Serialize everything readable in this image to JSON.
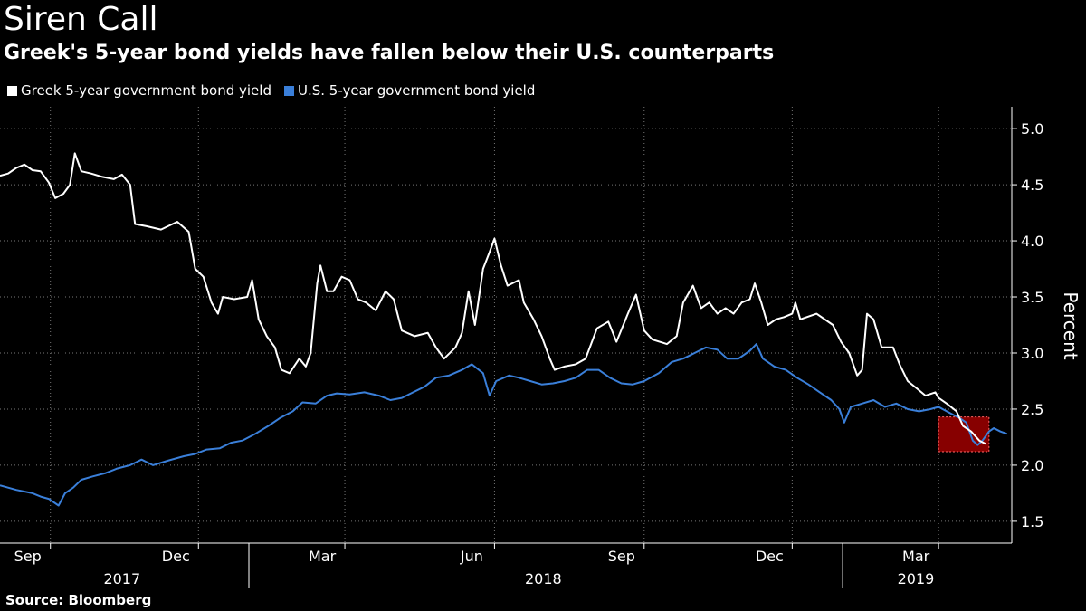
{
  "title": "Siren Call",
  "subtitle": "Greek's 5-year bond yields have fallen below their U.S. counterparts",
  "source": "Source: Bloomberg",
  "chart_data": {
    "type": "line",
    "title": "Siren Call",
    "subtitle": "Greek's 5-year bond yields have fallen below their U.S. counterparts",
    "xlabel": "",
    "ylabel": "Percent",
    "ylim": [
      1.5,
      5.0
    ],
    "yticks": [
      "1.5",
      "2.0",
      "2.5",
      "3.0",
      "3.5",
      "4.0",
      "4.5",
      "5.0"
    ],
    "xlim": [
      "2017-08-01",
      "2019-04-15"
    ],
    "x_ticks": [
      {
        "label": "Sep",
        "date": "2017-09-01"
      },
      {
        "label": "Dec",
        "date": "2017-12-01"
      },
      {
        "label": "Mar",
        "date": "2018-03-01"
      },
      {
        "label": "Jun",
        "date": "2018-06-01"
      },
      {
        "label": "Sep",
        "date": "2018-09-01"
      },
      {
        "label": "Dec",
        "date": "2018-12-01"
      },
      {
        "label": "Mar",
        "date": "2019-03-01"
      }
    ],
    "years": [
      {
        "label": "2017",
        "date": "2017-10-15"
      },
      {
        "label": "2018",
        "date": "2018-07-01"
      },
      {
        "label": "2019",
        "date": "2019-02-15"
      }
    ],
    "year_dividers": [
      "2018-01-01",
      "2019-01-01"
    ],
    "grid": true,
    "legend_position": "top-left",
    "highlight": {
      "x_range": [
        "2019-03-01",
        "2019-04-01"
      ],
      "y_range": [
        2.12,
        2.43
      ],
      "color": "#c00000"
    },
    "series": [
      {
        "name": "Greek 5-year government bond yield",
        "color": "#ffffff",
        "points": [
          [
            "2017-08-01",
            4.58
          ],
          [
            "2017-08-06",
            4.6
          ],
          [
            "2017-08-11",
            4.65
          ],
          [
            "2017-08-16",
            4.68
          ],
          [
            "2017-08-21",
            4.63
          ],
          [
            "2017-08-26",
            4.62
          ],
          [
            "2017-08-31",
            4.52
          ],
          [
            "2017-09-04",
            4.38
          ],
          [
            "2017-09-09",
            4.42
          ],
          [
            "2017-09-13",
            4.5
          ],
          [
            "2017-09-16",
            4.78
          ],
          [
            "2017-09-20",
            4.62
          ],
          [
            "2017-09-26",
            4.6
          ],
          [
            "2017-10-03",
            4.57
          ],
          [
            "2017-10-10",
            4.55
          ],
          [
            "2017-10-15",
            4.59
          ],
          [
            "2017-10-20",
            4.5
          ],
          [
            "2017-10-23",
            4.15
          ],
          [
            "2017-10-30",
            4.13
          ],
          [
            "2017-11-08",
            4.1
          ],
          [
            "2017-11-18",
            4.17
          ],
          [
            "2017-11-25",
            4.08
          ],
          [
            "2017-11-29",
            3.75
          ],
          [
            "2017-12-04",
            3.68
          ],
          [
            "2017-12-09",
            3.45
          ],
          [
            "2017-12-13",
            3.35
          ],
          [
            "2017-12-16",
            3.5
          ],
          [
            "2017-12-23",
            3.48
          ],
          [
            "2017-12-31",
            3.5
          ],
          [
            "2018-01-03",
            3.65
          ],
          [
            "2018-01-07",
            3.3
          ],
          [
            "2018-01-12",
            3.15
          ],
          [
            "2018-01-17",
            3.05
          ],
          [
            "2018-01-21",
            2.85
          ],
          [
            "2018-01-26",
            2.82
          ],
          [
            "2018-02-01",
            2.95
          ],
          [
            "2018-02-05",
            2.88
          ],
          [
            "2018-02-08",
            3.0
          ],
          [
            "2018-02-12",
            3.62
          ],
          [
            "2018-02-14",
            3.78
          ],
          [
            "2018-02-18",
            3.55
          ],
          [
            "2018-02-22",
            3.55
          ],
          [
            "2018-02-27",
            3.68
          ],
          [
            "2018-03-04",
            3.65
          ],
          [
            "2018-03-09",
            3.48
          ],
          [
            "2018-03-14",
            3.45
          ],
          [
            "2018-03-20",
            3.38
          ],
          [
            "2018-03-26",
            3.55
          ],
          [
            "2018-03-31",
            3.48
          ],
          [
            "2018-04-05",
            3.2
          ],
          [
            "2018-04-13",
            3.15
          ],
          [
            "2018-04-21",
            3.18
          ],
          [
            "2018-04-26",
            3.05
          ],
          [
            "2018-05-01",
            2.95
          ],
          [
            "2018-05-08",
            3.05
          ],
          [
            "2018-05-12",
            3.18
          ],
          [
            "2018-05-16",
            3.55
          ],
          [
            "2018-05-20",
            3.25
          ],
          [
            "2018-05-25",
            3.75
          ],
          [
            "2018-05-29",
            3.9
          ],
          [
            "2018-06-01",
            4.02
          ],
          [
            "2018-06-05",
            3.78
          ],
          [
            "2018-06-09",
            3.6
          ],
          [
            "2018-06-16",
            3.65
          ],
          [
            "2018-06-19",
            3.45
          ],
          [
            "2018-06-25",
            3.3
          ],
          [
            "2018-06-30",
            3.15
          ],
          [
            "2018-07-05",
            2.95
          ],
          [
            "2018-07-08",
            2.85
          ],
          [
            "2018-07-14",
            2.88
          ],
          [
            "2018-07-21",
            2.9
          ],
          [
            "2018-07-27",
            2.95
          ],
          [
            "2018-08-03",
            3.22
          ],
          [
            "2018-08-10",
            3.28
          ],
          [
            "2018-08-15",
            3.1
          ],
          [
            "2018-08-22",
            3.35
          ],
          [
            "2018-08-27",
            3.52
          ],
          [
            "2018-09-01",
            3.2
          ],
          [
            "2018-09-06",
            3.12
          ],
          [
            "2018-09-15",
            3.08
          ],
          [
            "2018-09-21",
            3.15
          ],
          [
            "2018-09-25",
            3.45
          ],
          [
            "2018-10-01",
            3.6
          ],
          [
            "2018-10-06",
            3.4
          ],
          [
            "2018-10-11",
            3.45
          ],
          [
            "2018-10-16",
            3.35
          ],
          [
            "2018-10-21",
            3.4
          ],
          [
            "2018-10-26",
            3.35
          ],
          [
            "2018-10-31",
            3.45
          ],
          [
            "2018-11-05",
            3.48
          ],
          [
            "2018-11-08",
            3.62
          ],
          [
            "2018-11-12",
            3.45
          ],
          [
            "2018-11-16",
            3.25
          ],
          [
            "2018-11-21",
            3.3
          ],
          [
            "2018-11-26",
            3.32
          ],
          [
            "2018-12-01",
            3.35
          ],
          [
            "2018-12-03",
            3.45
          ],
          [
            "2018-12-06",
            3.3
          ],
          [
            "2018-12-16",
            3.35
          ],
          [
            "2018-12-26",
            3.25
          ],
          [
            "2018-12-31",
            3.1
          ],
          [
            "2019-01-05",
            3.0
          ],
          [
            "2019-01-10",
            2.8
          ],
          [
            "2019-01-13",
            2.85
          ],
          [
            "2019-01-16",
            3.35
          ],
          [
            "2019-01-20",
            3.3
          ],
          [
            "2019-01-25",
            3.05
          ],
          [
            "2019-02-01",
            3.05
          ],
          [
            "2019-02-05",
            2.9
          ],
          [
            "2019-02-10",
            2.75
          ],
          [
            "2019-02-16",
            2.68
          ],
          [
            "2019-02-21",
            2.62
          ],
          [
            "2019-02-27",
            2.65
          ],
          [
            "2019-03-01",
            2.6
          ],
          [
            "2019-03-06",
            2.55
          ],
          [
            "2019-03-12",
            2.48
          ],
          [
            "2019-03-16",
            2.35
          ],
          [
            "2019-03-21",
            2.3
          ],
          [
            "2019-03-26",
            2.22
          ],
          [
            "2019-03-30",
            2.19
          ]
        ]
      },
      {
        "name": "U.S. 5-year government bond yield",
        "color": "#3a7fd9",
        "points": [
          [
            "2017-08-01",
            1.82
          ],
          [
            "2017-08-11",
            1.78
          ],
          [
            "2017-08-21",
            1.75
          ],
          [
            "2017-08-26",
            1.72
          ],
          [
            "2017-08-31",
            1.7
          ],
          [
            "2017-09-06",
            1.64
          ],
          [
            "2017-09-10",
            1.75
          ],
          [
            "2017-09-15",
            1.8
          ],
          [
            "2017-09-20",
            1.87
          ],
          [
            "2017-09-27",
            1.9
          ],
          [
            "2017-10-05",
            1.93
          ],
          [
            "2017-10-12",
            1.97
          ],
          [
            "2017-10-20",
            2.0
          ],
          [
            "2017-10-27",
            2.05
          ],
          [
            "2017-11-03",
            2.0
          ],
          [
            "2017-11-12",
            2.04
          ],
          [
            "2017-11-22",
            2.08
          ],
          [
            "2017-11-29",
            2.1
          ],
          [
            "2017-12-06",
            2.14
          ],
          [
            "2017-12-14",
            2.15
          ],
          [
            "2017-12-21",
            2.2
          ],
          [
            "2017-12-28",
            2.22
          ],
          [
            "2018-01-05",
            2.28
          ],
          [
            "2018-01-13",
            2.35
          ],
          [
            "2018-01-20",
            2.42
          ],
          [
            "2018-01-28",
            2.48
          ],
          [
            "2018-02-03",
            2.56
          ],
          [
            "2018-02-11",
            2.55
          ],
          [
            "2018-02-18",
            2.62
          ],
          [
            "2018-02-24",
            2.64
          ],
          [
            "2018-03-04",
            2.63
          ],
          [
            "2018-03-13",
            2.65
          ],
          [
            "2018-03-22",
            2.62
          ],
          [
            "2018-03-29",
            2.58
          ],
          [
            "2018-04-05",
            2.6
          ],
          [
            "2018-04-12",
            2.65
          ],
          [
            "2018-04-19",
            2.7
          ],
          [
            "2018-04-26",
            2.78
          ],
          [
            "2018-05-04",
            2.8
          ],
          [
            "2018-05-12",
            2.85
          ],
          [
            "2018-05-18",
            2.9
          ],
          [
            "2018-05-25",
            2.82
          ],
          [
            "2018-05-29",
            2.62
          ],
          [
            "2018-06-02",
            2.75
          ],
          [
            "2018-06-10",
            2.8
          ],
          [
            "2018-06-16",
            2.78
          ],
          [
            "2018-06-23",
            2.75
          ],
          [
            "2018-06-30",
            2.72
          ],
          [
            "2018-07-07",
            2.73
          ],
          [
            "2018-07-14",
            2.75
          ],
          [
            "2018-07-21",
            2.78
          ],
          [
            "2018-07-28",
            2.85
          ],
          [
            "2018-08-04",
            2.85
          ],
          [
            "2018-08-11",
            2.78
          ],
          [
            "2018-08-18",
            2.73
          ],
          [
            "2018-08-25",
            2.72
          ],
          [
            "2018-09-01",
            2.75
          ],
          [
            "2018-09-10",
            2.82
          ],
          [
            "2018-09-18",
            2.92
          ],
          [
            "2018-09-25",
            2.95
          ],
          [
            "2018-10-02",
            3.0
          ],
          [
            "2018-10-09",
            3.05
          ],
          [
            "2018-10-16",
            3.03
          ],
          [
            "2018-10-22",
            2.95
          ],
          [
            "2018-10-29",
            2.95
          ],
          [
            "2018-11-05",
            3.02
          ],
          [
            "2018-11-09",
            3.08
          ],
          [
            "2018-11-13",
            2.95
          ],
          [
            "2018-11-20",
            2.88
          ],
          [
            "2018-11-27",
            2.85
          ],
          [
            "2018-12-04",
            2.78
          ],
          [
            "2018-12-11",
            2.72
          ],
          [
            "2018-12-18",
            2.65
          ],
          [
            "2018-12-25",
            2.58
          ],
          [
            "2018-12-30",
            2.5
          ],
          [
            "2019-01-02",
            2.38
          ],
          [
            "2019-01-06",
            2.52
          ],
          [
            "2019-01-13",
            2.55
          ],
          [
            "2019-01-20",
            2.58
          ],
          [
            "2019-01-27",
            2.52
          ],
          [
            "2019-02-03",
            2.55
          ],
          [
            "2019-02-10",
            2.5
          ],
          [
            "2019-02-17",
            2.48
          ],
          [
            "2019-02-24",
            2.5
          ],
          [
            "2019-03-01",
            2.52
          ],
          [
            "2019-03-06",
            2.48
          ],
          [
            "2019-03-10",
            2.45
          ],
          [
            "2019-03-14",
            2.42
          ],
          [
            "2019-03-18",
            2.38
          ],
          [
            "2019-03-22",
            2.22
          ],
          [
            "2019-03-25",
            2.18
          ],
          [
            "2019-03-28",
            2.22
          ],
          [
            "2019-04-01",
            2.3
          ],
          [
            "2019-04-04",
            2.33
          ],
          [
            "2019-04-08",
            2.3
          ],
          [
            "2019-04-12",
            2.28
          ]
        ]
      }
    ]
  }
}
